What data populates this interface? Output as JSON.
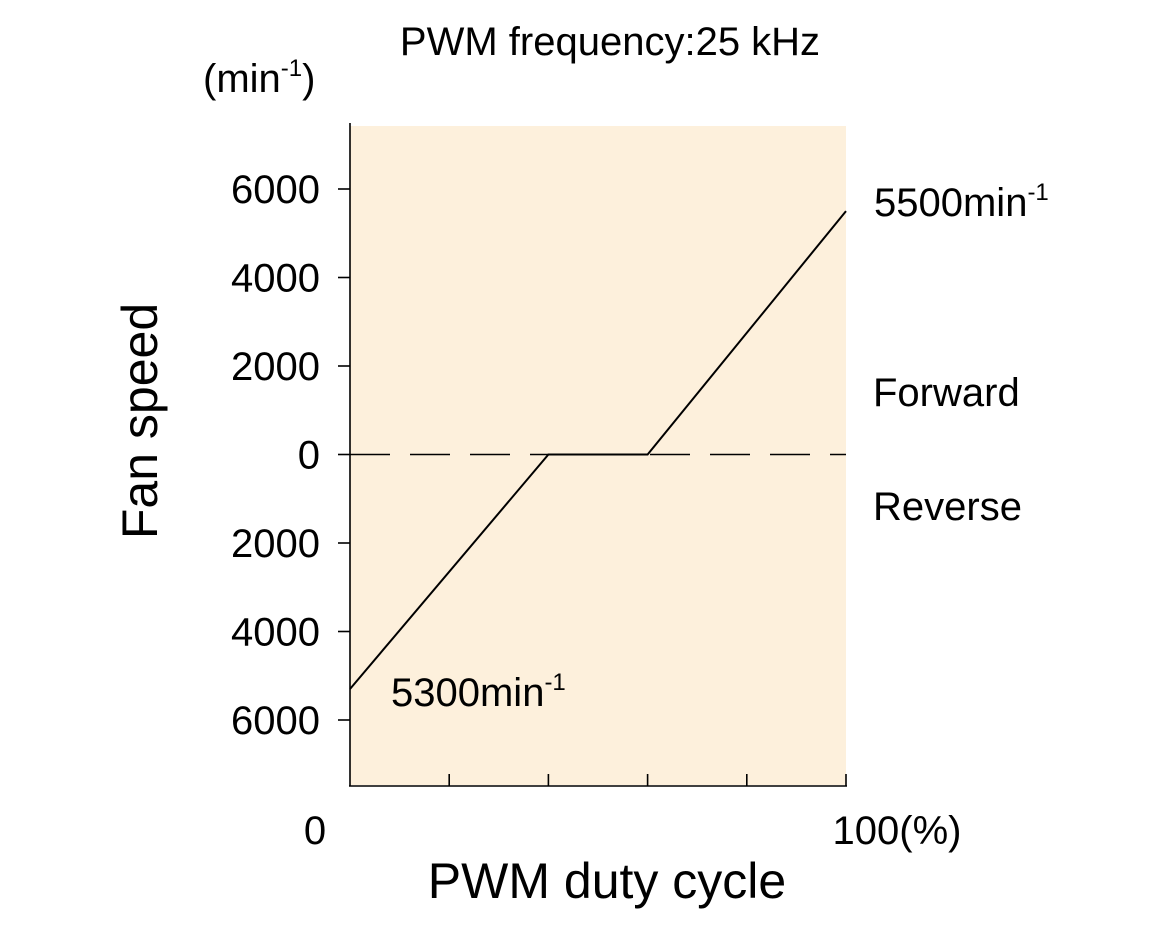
{
  "chart_data": {
    "type": "line",
    "title": "PWM frequency:25 kHz",
    "xlabel": "PWM duty cycle",
    "ylabel": "Fan speed",
    "y_unit": {
      "base": "(min",
      "sup": "-1",
      "close": ")"
    },
    "xlim": [
      0,
      100
    ],
    "ylim": [
      -7500,
      7500
    ],
    "x_tick_labels": [
      {
        "value": 0,
        "label": "0"
      },
      {
        "value": 100,
        "label": "100(%)"
      }
    ],
    "x_minor_ticks": [
      20,
      40,
      60,
      80,
      100
    ],
    "y_tick_labels": [
      {
        "value": 6000,
        "label": "6000"
      },
      {
        "value": 4000,
        "label": "4000"
      },
      {
        "value": 2000,
        "label": "2000"
      },
      {
        "value": 0,
        "label": "0"
      },
      {
        "value": -2000,
        "label": "2000"
      },
      {
        "value": -4000,
        "label": "4000"
      },
      {
        "value": -6000,
        "label": "6000"
      }
    ],
    "series": [
      {
        "x": [
          0,
          40,
          60,
          100
        ],
        "y": [
          -5300,
          0,
          0,
          5500
        ]
      }
    ],
    "zero_line": {
      "style": "dashed"
    },
    "region_labels": {
      "upper": "Forward",
      "lower": "Reverse"
    },
    "annotations": [
      {
        "key": "max_forward",
        "base": "5500min",
        "sup": "-1",
        "x": 100,
        "y": 5500
      },
      {
        "key": "max_reverse",
        "base": "5300min",
        "sup": "-1",
        "x": 0,
        "y": -5300
      }
    ],
    "colors": {
      "plot_background": "#fdf0dc",
      "line": "#000000"
    },
    "grid": false,
    "legend": "none"
  }
}
